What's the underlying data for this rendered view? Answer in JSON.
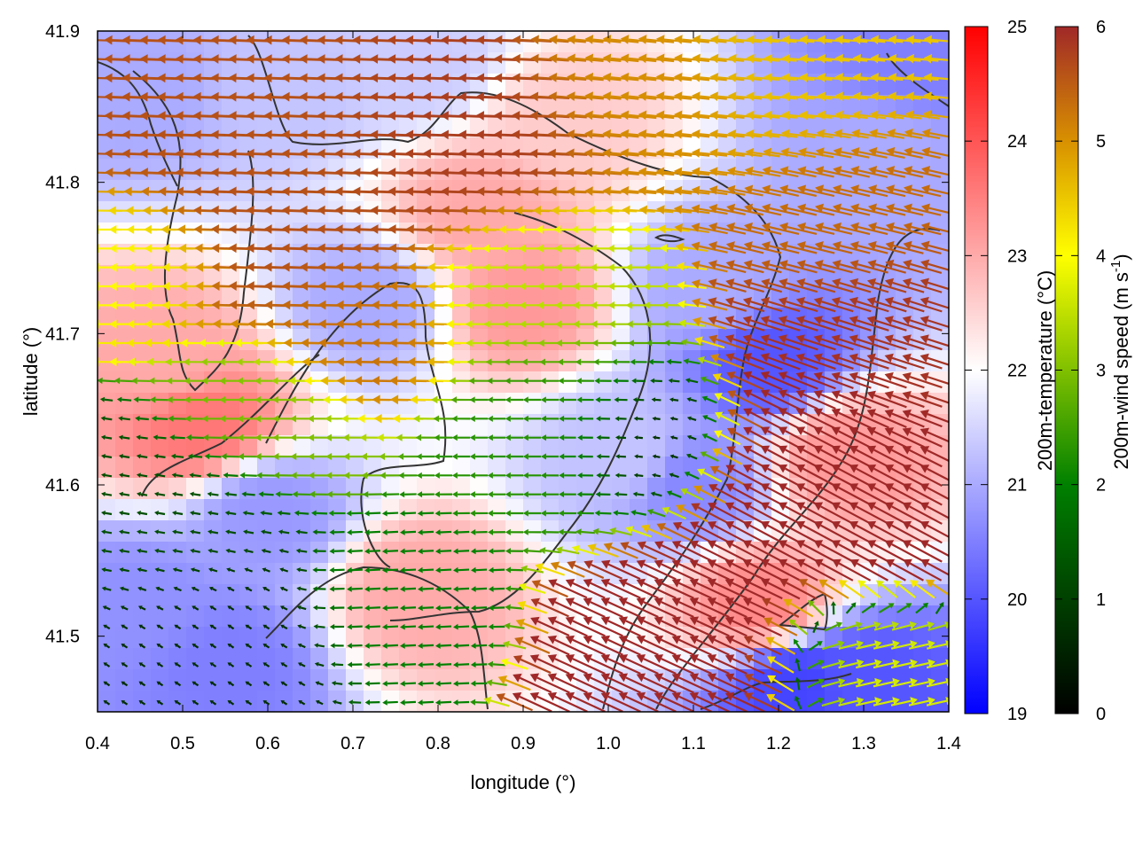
{
  "chart_data": {
    "type": "heatmap",
    "subtype": "vector-field-over-heatmap",
    "xlabel": "longitude (°)",
    "ylabel": "latitude (°)",
    "xlim": [
      0.4,
      1.4
    ],
    "ylim": [
      41.45,
      41.9
    ],
    "xticks": [
      0.4,
      0.5,
      0.6,
      0.7,
      0.8,
      0.9,
      1.0,
      1.1,
      1.2,
      1.3,
      1.4
    ],
    "xtick_labels": [
      "0.4",
      "0.5",
      "0.6",
      "0.7",
      "0.8",
      "0.9",
      "1.0",
      "1.1",
      "1.2",
      "1.3",
      "1.4"
    ],
    "yticks": [
      41.5,
      41.6,
      41.7,
      41.8,
      41.9
    ],
    "ytick_labels": [
      "41.5",
      "41.6",
      "41.7",
      "41.8",
      "41.9"
    ],
    "grid": false,
    "temperature_colorbar": {
      "label": "200m-temperature (°C)",
      "range": [
        19,
        25
      ],
      "ticks": [
        19,
        20,
        21,
        22,
        23,
        24,
        25
      ],
      "tick_labels": [
        "19",
        "20",
        "21",
        "22",
        "23",
        "24",
        "25"
      ],
      "colors": {
        "19": "#0000ff",
        "22": "#ffffff",
        "25": "#ff0000"
      }
    },
    "wind_colorbar": {
      "label": "200m-wind speed (m s",
      "label_sup": "-1",
      "label_end": ")",
      "range": [
        0,
        6
      ],
      "ticks": [
        0,
        1,
        2,
        3,
        4,
        5,
        6
      ],
      "tick_labels": [
        "0",
        "1",
        "2",
        "3",
        "4",
        "5",
        "6"
      ],
      "colors": [
        "#000000",
        "#004000",
        "#008000",
        "#80c000",
        "#ffff00",
        "#d89000",
        "#a02828"
      ]
    },
    "temperature_features": [
      {
        "lon": 0.45,
        "lat": 41.86,
        "t": 21.0
      },
      {
        "lon": 0.48,
        "lat": 41.68,
        "t": 23.0
      },
      {
        "lon": 0.52,
        "lat": 41.64,
        "t": 23.6
      },
      {
        "lon": 0.6,
        "lat": 41.58,
        "t": 20.8
      },
      {
        "lon": 0.45,
        "lat": 41.52,
        "t": 20.7
      },
      {
        "lon": 0.55,
        "lat": 41.48,
        "t": 20.5
      },
      {
        "lon": 0.72,
        "lat": 41.72,
        "t": 21.0
      },
      {
        "lon": 0.85,
        "lat": 41.78,
        "t": 23.0
      },
      {
        "lon": 0.9,
        "lat": 41.72,
        "t": 23.2
      },
      {
        "lon": 0.78,
        "lat": 41.53,
        "t": 23.0
      },
      {
        "lon": 1.02,
        "lat": 41.62,
        "t": 21.3
      },
      {
        "lon": 1.1,
        "lat": 41.6,
        "t": 20.6
      },
      {
        "lon": 1.19,
        "lat": 41.68,
        "t": 20.0
      },
      {
        "lon": 1.12,
        "lat": 41.73,
        "t": 21.0
      },
      {
        "lon": 1.28,
        "lat": 41.62,
        "t": 23.2
      },
      {
        "lon": 1.18,
        "lat": 41.52,
        "t": 23.4
      },
      {
        "lon": 1.32,
        "lat": 41.82,
        "t": 21.0
      },
      {
        "lon": 1.36,
        "lat": 41.88,
        "t": 20.5
      },
      {
        "lon": 1.22,
        "lat": 41.47,
        "t": 19.8
      },
      {
        "lon": 1.3,
        "lat": 41.47,
        "t": 20.0
      },
      {
        "lon": 0.62,
        "lat": 41.86,
        "t": 21.3
      },
      {
        "lon": 0.78,
        "lat": 41.88,
        "t": 21.4
      },
      {
        "lon": 0.95,
        "lat": 41.84,
        "t": 22.6
      }
    ],
    "wind_regimes": [
      {
        "lon": 0.63,
        "lat": 41.81,
        "u": -5.6,
        "v": 0.2,
        "r": 0.13
      },
      {
        "lon": 0.84,
        "lat": 41.83,
        "u": -5.8,
        "v": 0.2,
        "r": 0.1
      },
      {
        "lon": 0.72,
        "lat": 41.7,
        "u": -5.3,
        "v": 0.1,
        "r": 0.07
      },
      {
        "lon": 1.05,
        "lat": 41.86,
        "u": -5.0,
        "v": 0.5,
        "r": 0.09
      },
      {
        "lon": 1.24,
        "lat": 41.88,
        "u": -4.5,
        "v": 0.4,
        "r": 0.1
      },
      {
        "lon": 0.92,
        "lat": 41.73,
        "u": -3.5,
        "v": 0.0,
        "r": 0.08
      },
      {
        "lon": 0.95,
        "lat": 41.64,
        "u": -2.3,
        "v": 0.0,
        "r": 0.09
      },
      {
        "lon": 0.6,
        "lat": 41.64,
        "u": -3.0,
        "v": 0.0,
        "r": 0.07
      },
      {
        "lon": 0.5,
        "lat": 41.58,
        "u": -1.2,
        "v": 0.2,
        "r": 0.08
      },
      {
        "lon": 0.55,
        "lat": 41.5,
        "u": -0.6,
        "v": 0.4,
        "r": 0.08
      },
      {
        "lon": 0.75,
        "lat": 41.52,
        "u": -2.0,
        "v": -0.1,
        "r": 0.07
      },
      {
        "lon": 1.05,
        "lat": 41.63,
        "u": -0.3,
        "v": 0.1,
        "r": 0.06
      },
      {
        "lon": 1.25,
        "lat": 41.6,
        "u": -5.6,
        "v": 3.0,
        "r": 0.1
      },
      {
        "lon": 1.34,
        "lat": 41.7,
        "u": -5.6,
        "v": 1.8,
        "r": 0.1
      },
      {
        "lon": 1.1,
        "lat": 41.49,
        "u": -5.6,
        "v": 2.6,
        "r": 0.09
      },
      {
        "lon": 1.3,
        "lat": 41.78,
        "u": -5.2,
        "v": 1.2,
        "r": 0.09
      },
      {
        "lon": 1.3,
        "lat": 41.48,
        "u": 3.6,
        "v": 0.8,
        "r": 0.06
      },
      {
        "lon": 0.45,
        "lat": 41.75,
        "u": -4.0,
        "v": 0.0,
        "r": 0.06
      }
    ]
  }
}
